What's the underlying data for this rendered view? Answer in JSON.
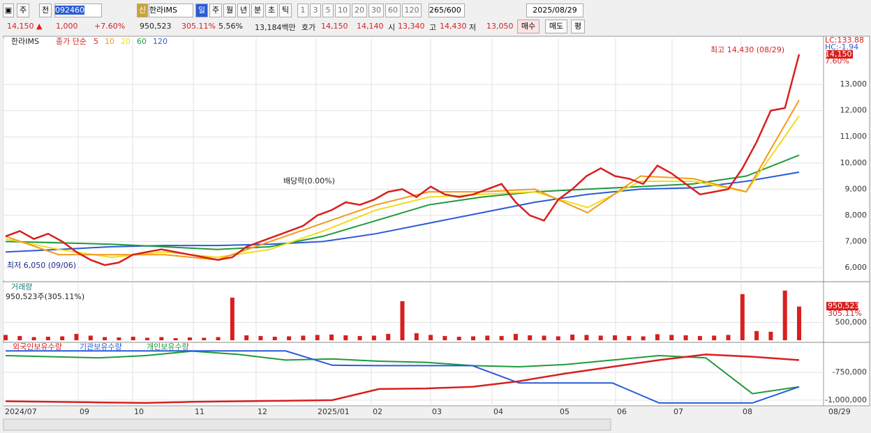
{
  "toolbar": {
    "view": "주",
    "prev": "전",
    "code": "092460",
    "new": "신",
    "name": "한라IMS",
    "periods": [
      "일",
      "주",
      "월",
      "년",
      "분",
      "초",
      "틱"
    ],
    "counts": [
      "1",
      "3",
      "5",
      "10",
      "20",
      "30",
      "60",
      "120"
    ],
    "count": "265",
    "total": "/600",
    "date": "2025/08/29"
  },
  "infobar": {
    "cells": [
      {
        "text": "14,150 ▲",
        "color": "#d81f1f"
      },
      {
        "text": "1,000",
        "color": "#d81f1f"
      },
      {
        "text": "+7.60%",
        "color": "#d81f1f"
      },
      {
        "text": "950,523",
        "color": "#222"
      },
      {
        "text": "305.11%",
        "color": "#d81f1f"
      },
      {
        "text": "5.56%",
        "color": "#222"
      },
      {
        "text": "13,184백만",
        "color": "#222"
      },
      {
        "text": "호가",
        "color": "#222"
      },
      {
        "text": "14,150",
        "color": "#d81f1f"
      },
      {
        "text": "14,140",
        "color": "#d81f1f"
      },
      {
        "text": "시",
        "color": "#222"
      },
      {
        "text": "13,340",
        "color": "#d81f1f"
      },
      {
        "text": "고",
        "color": "#222"
      },
      {
        "text": "14,430",
        "color": "#d81f1f"
      },
      {
        "text": "저",
        "color": "#222"
      },
      {
        "text": "13,050",
        "color": "#d81f1f"
      }
    ],
    "buttons": [
      "매수",
      "매도",
      "평"
    ]
  },
  "x_axis": {
    "labels": [
      "2024/07",
      "09",
      "10",
      "11",
      "12",
      "2025/01",
      "02",
      "03",
      "04",
      "05",
      "06",
      "07",
      "08",
      "08/29"
    ]
  },
  "chart_data": [
    {
      "type": "line",
      "title": "한라IMS",
      "subtitle": "종가 단순",
      "ylim": [
        5520,
        14760
      ],
      "yticks": [
        {
          "value": 13000,
          "label": "13,000"
        },
        {
          "value": 12000,
          "label": "12,000"
        },
        {
          "value": 11000,
          "label": "11,000"
        },
        {
          "value": 10000,
          "label": "10,000"
        },
        {
          "value": 9000,
          "label": "9,000"
        },
        {
          "value": 8000,
          "label": "8,000"
        },
        {
          "value": 7000,
          "label": "7,000"
        },
        {
          "value": 6000,
          "label": "6,000"
        }
      ],
      "side_labels": [
        "LC:133.88",
        "HC:-1.94",
        "14,150",
        "7.60%"
      ],
      "annotations": {
        "high": "최고 14,430 (08/29)",
        "low": "최저 6,050 (09/06)",
        "dividend": "배당락(0.00%)"
      },
      "grid": true,
      "series": [
        {
          "name": "5",
          "color": "#d81f1f",
          "values": [
            7200,
            7400,
            7100,
            7300,
            7000,
            6600,
            6300,
            6100,
            6200,
            6500,
            6600,
            6700,
            6600,
            6500,
            6400,
            6300,
            6400,
            6800,
            7000,
            7200,
            7400,
            7600,
            8000,
            8200,
            8500,
            8400,
            8600,
            8900,
            9000,
            8700,
            9100,
            8800,
            8700,
            8800,
            9000,
            9200,
            8500,
            8000,
            7800,
            8600,
            9000,
            9500,
            9800,
            9500,
            9400,
            9200,
            9900,
            9600,
            9200,
            8800,
            8900,
            9000,
            9800,
            10800,
            12000,
            12100,
            14150
          ]
        },
        {
          "name": "10",
          "color": "#f29a1a",
          "values": [
            7200,
            6500,
            6500,
            6500,
            6300,
            7000,
            7700,
            8400,
            8900,
            8900,
            9000,
            8100,
            9500,
            9400,
            8900,
            12400
          ]
        },
        {
          "name": "20",
          "color": "#f0dc1a",
          "values": [
            7100,
            6700,
            6400,
            6600,
            6400,
            6700,
            7400,
            8200,
            8700,
            8800,
            8900,
            8300,
            9300,
            9300,
            8900,
            11800
          ]
        },
        {
          "name": "60",
          "color": "#1e9a3a",
          "values": [
            7000,
            6950,
            6900,
            6800,
            6700,
            6800,
            7200,
            7800,
            8400,
            8700,
            8900,
            9000,
            9100,
            9200,
            9500,
            10300
          ]
        },
        {
          "name": "120",
          "color": "#2a5bd7",
          "values": [
            6600,
            6700,
            6800,
            6850,
            6850,
            6900,
            7000,
            7300,
            7700,
            8100,
            8500,
            8800,
            9000,
            9050,
            9300,
            9650
          ]
        }
      ]
    },
    {
      "type": "bar",
      "title": "거래량",
      "subtitle": "950,523주(305.11%)",
      "ylim": [
        0,
        1630000
      ],
      "yticks": [
        {
          "value": 500000,
          "label": "500,000"
        }
      ],
      "side_labels": [
        "950,523",
        "305.11%"
      ],
      "color": "#d81f1f",
      "values": [
        150000,
        120000,
        90000,
        100000,
        110000,
        180000,
        130000,
        90000,
        80000,
        100000,
        70000,
        90000,
        60000,
        80000,
        70000,
        90000,
        1200000,
        140000,
        120000,
        100000,
        110000,
        130000,
        150000,
        160000,
        140000,
        120000,
        130000,
        180000,
        1100000,
        200000,
        150000,
        120000,
        100000,
        110000,
        130000,
        120000,
        180000,
        140000,
        130000,
        110000,
        160000,
        150000,
        130000,
        140000,
        120000,
        110000,
        170000,
        150000,
        140000,
        120000,
        130000,
        150000,
        1300000,
        260000,
        240000,
        1400000,
        950523
      ]
    },
    {
      "type": "line",
      "legend": [
        "외국인보유수량",
        "기관보유수량",
        "개인보유수량"
      ],
      "ylim": [
        -1051000,
        -487000
      ],
      "yticks": [
        {
          "value": -750000,
          "label": "-750,000"
        },
        {
          "value": -1000000,
          "label": "-1,000,000"
        }
      ],
      "series": [
        {
          "name": "외국인보유수량",
          "color": "#d81f1f",
          "values": [
            -1010000,
            -1015000,
            -1020000,
            -1025000,
            -1015000,
            -1010000,
            -1005000,
            -1000000,
            -900000,
            -895000,
            -880000,
            -830000,
            -760000,
            -700000,
            -640000,
            -590000,
            -610000,
            -640000
          ]
        },
        {
          "name": "기관보유수량",
          "color": "#2a5bd7",
          "values": [
            -558000,
            -558000,
            -558000,
            -558000,
            -558000,
            -558000,
            -558000,
            -686000,
            -690000,
            -690000,
            -690000,
            -846000,
            -846000,
            -846000,
            -1025000,
            -1025000,
            -1025000,
            -880000
          ]
        },
        {
          "name": "개인보유수량",
          "color": "#1e9a3a",
          "values": [
            -600000,
            -610000,
            -620000,
            -600000,
            -560000,
            -590000,
            -640000,
            -630000,
            -650000,
            -660000,
            -690000,
            -700000,
            -680000,
            -640000,
            -600000,
            -620000,
            -942000,
            -880000
          ]
        }
      ]
    }
  ]
}
